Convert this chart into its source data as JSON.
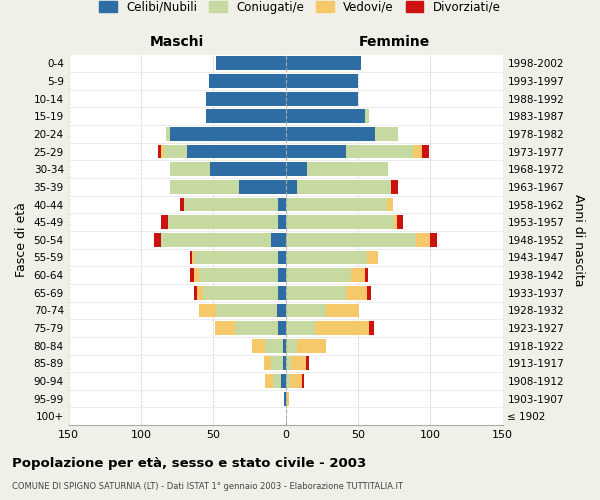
{
  "age_groups": [
    "0-4",
    "5-9",
    "10-14",
    "15-19",
    "20-24",
    "25-29",
    "30-34",
    "35-39",
    "40-44",
    "45-49",
    "50-54",
    "55-59",
    "60-64",
    "65-69",
    "70-74",
    "75-79",
    "80-84",
    "85-89",
    "90-94",
    "95-99",
    "100+"
  ],
  "birth_years": [
    "1998-2002",
    "1993-1997",
    "1988-1992",
    "1983-1987",
    "1978-1982",
    "1973-1977",
    "1968-1972",
    "1963-1967",
    "1958-1962",
    "1953-1957",
    "1948-1952",
    "1943-1947",
    "1938-1942",
    "1933-1937",
    "1928-1932",
    "1923-1927",
    "1918-1922",
    "1913-1917",
    "1908-1912",
    "1903-1907",
    "≤ 1902"
  ],
  "maschi_celibi": [
    48,
    53,
    55,
    55,
    80,
    68,
    52,
    32,
    5,
    5,
    10,
    5,
    5,
    5,
    6,
    5,
    2,
    2,
    3,
    1,
    0
  ],
  "maschi_coniugati": [
    0,
    0,
    0,
    0,
    3,
    16,
    28,
    48,
    65,
    76,
    76,
    58,
    55,
    52,
    42,
    30,
    12,
    8,
    6,
    0,
    0
  ],
  "maschi_vedovi": [
    0,
    0,
    0,
    0,
    0,
    2,
    0,
    0,
    0,
    0,
    0,
    2,
    3,
    4,
    12,
    14,
    9,
    5,
    5,
    0,
    0
  ],
  "maschi_divorziati": [
    0,
    0,
    0,
    0,
    0,
    2,
    0,
    0,
    3,
    5,
    5,
    1,
    3,
    2,
    0,
    0,
    0,
    0,
    0,
    0,
    0
  ],
  "femmine_celibi": [
    52,
    50,
    50,
    55,
    62,
    42,
    15,
    8,
    0,
    0,
    0,
    0,
    0,
    0,
    0,
    0,
    0,
    0,
    0,
    0,
    0
  ],
  "femmine_coniugati": [
    0,
    0,
    0,
    3,
    16,
    46,
    56,
    65,
    70,
    75,
    90,
    56,
    45,
    42,
    28,
    20,
    8,
    4,
    3,
    0,
    0
  ],
  "femmine_vedovi": [
    0,
    0,
    0,
    0,
    0,
    6,
    0,
    0,
    4,
    2,
    10,
    8,
    10,
    14,
    23,
    38,
    20,
    10,
    8,
    2,
    0
  ],
  "femmine_divorziati": [
    0,
    0,
    0,
    0,
    0,
    5,
    0,
    5,
    0,
    4,
    5,
    0,
    2,
    3,
    0,
    3,
    0,
    2,
    2,
    0,
    0
  ],
  "color_celibi": "#2e6da4",
  "color_coniugati": "#c5d9a0",
  "color_vedovi": "#f5c86a",
  "color_divorziati": "#cc1111",
  "xlim": 150,
  "title": "Popolazione per età, sesso e stato civile - 2003",
  "subtitle": "COMUNE DI SPIGNO SATURNIA (LT) - Dati ISTAT 1° gennaio 2003 - Elaborazione TUTTITALIA.IT",
  "ylabel_left": "Fasce di età",
  "ylabel_right": "Anni di nascita",
  "label_maschi": "Maschi",
  "label_femmine": "Femmine",
  "legend_labels": [
    "Celibi/Nubili",
    "Coniugati/e",
    "Vedovi/e",
    "Divorziati/e"
  ],
  "bg_color": "#f0f0e8",
  "plot_bg_color": "#ffffff",
  "xticks": [
    -150,
    -100,
    -50,
    0,
    50,
    100,
    150
  ]
}
